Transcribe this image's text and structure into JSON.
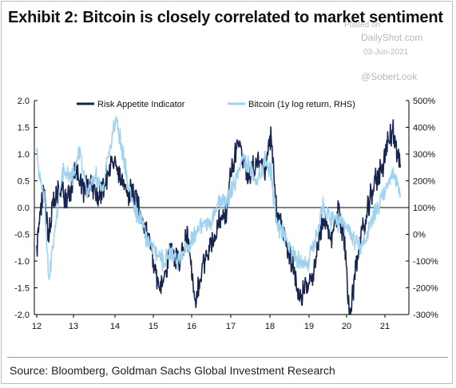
{
  "header": {
    "title": "Exhibit 2: Bitcoin is closely correlated to market sentiment"
  },
  "watermark": {
    "posted_on": "Posted on",
    "site": "DailyShot.com",
    "date": "03-Jun-2021",
    "handle": "@SoberLook"
  },
  "footer": {
    "source": "Source: Bloomberg, Goldman Sachs Global Investment Research"
  },
  "colors": {
    "risk_appetite": "#16244f",
    "bitcoin": "#9fd2ee",
    "axis": "#000000"
  },
  "chart_data": {
    "type": "line",
    "title": "Exhibit 2: Bitcoin is closely correlated to market sentiment",
    "x_ticks": [
      "12",
      "13",
      "14",
      "15",
      "16",
      "17",
      "18",
      "19",
      "20",
      "21"
    ],
    "y_left": {
      "min": -2.0,
      "max": 2.0,
      "ticks": [
        "2.0",
        "1.5",
        "1.0",
        "0.5",
        "0.0",
        "-0.5",
        "-1.0",
        "-1.5",
        "-2.0"
      ]
    },
    "y_right": {
      "min": -300,
      "max": 500,
      "ticks": [
        "500%",
        "400%",
        "300%",
        "200%",
        "100%",
        "0%",
        "-100%",
        "-200%",
        "-300%"
      ]
    },
    "legend": {
      "position": "top",
      "items": [
        "Risk Appetite Indicator",
        "Bitcoin (1y log return, RHS)"
      ]
    },
    "grid": false,
    "series": [
      {
        "name": "Risk Appetite Indicator",
        "axis": "left",
        "x": [
          2012.0,
          2012.08,
          2012.18,
          2012.3,
          2012.45,
          2012.62,
          2012.8,
          2013.0,
          2013.2,
          2013.4,
          2013.6,
          2013.8,
          2014.0,
          2014.2,
          2014.4,
          2014.6,
          2014.8,
          2015.0,
          2015.2,
          2015.45,
          2015.7,
          2015.9,
          2016.1,
          2016.3,
          2016.5,
          2016.7,
          2016.9,
          2017.0,
          2017.2,
          2017.45,
          2017.7,
          2017.9,
          2018.05,
          2018.2,
          2018.4,
          2018.6,
          2018.8,
          2019.0,
          2019.2,
          2019.4,
          2019.6,
          2019.8,
          2019.95,
          2020.1,
          2020.2,
          2020.3,
          2020.5,
          2020.7,
          2020.9,
          2021.0,
          2021.2,
          2021.4
        ],
        "y": [
          -0.8,
          -0.1,
          0.25,
          -0.45,
          0.1,
          0.35,
          0.15,
          0.7,
          0.3,
          0.5,
          0.15,
          0.6,
          0.9,
          0.4,
          0.3,
          0.1,
          -0.3,
          -0.9,
          -1.6,
          -0.8,
          -1.0,
          -0.5,
          -1.9,
          -1.0,
          -0.7,
          -0.3,
          -0.05,
          0.5,
          1.3,
          0.6,
          0.9,
          0.7,
          1.3,
          -0.1,
          -0.5,
          -1.0,
          -1.7,
          -1.5,
          -1.1,
          -0.2,
          -0.6,
          -0.05,
          -0.6,
          -2.05,
          -1.4,
          -0.8,
          -0.25,
          0.4,
          0.7,
          1.0,
          1.45,
          0.75
        ]
      },
      {
        "name": "Bitcoin (1y log return, RHS)",
        "axis": "right",
        "x": [
          2012.0,
          2012.08,
          2012.2,
          2012.32,
          2012.5,
          2012.7,
          2012.9,
          2013.1,
          2013.3,
          2013.5,
          2013.7,
          2013.9,
          2014.05,
          2014.25,
          2014.45,
          2014.65,
          2014.85,
          2015.05,
          2015.25,
          2015.45,
          2015.7,
          2015.9,
          2016.1,
          2016.3,
          2016.5,
          2016.7,
          2016.9,
          2017.1,
          2017.3,
          2017.5,
          2017.7,
          2017.9,
          2018.05,
          2018.2,
          2018.4,
          2018.6,
          2018.8,
          2019.0,
          2019.2,
          2019.4,
          2019.6,
          2019.8,
          2020.0,
          2020.2,
          2020.4,
          2020.6,
          2020.8,
          2021.0,
          2021.2,
          2021.4
        ],
        "y": [
          310,
          200,
          130,
          -175,
          60,
          250,
          200,
          310,
          160,
          230,
          160,
          330,
          445,
          280,
          120,
          60,
          -20,
          -60,
          -100,
          -80,
          -100,
          -50,
          0,
          50,
          40,
          120,
          130,
          180,
          280,
          250,
          200,
          280,
          240,
          40,
          0,
          -70,
          -100,
          -110,
          -30,
          110,
          50,
          40,
          30,
          -20,
          -40,
          20,
          100,
          150,
          240,
          150
        ]
      }
    ]
  }
}
